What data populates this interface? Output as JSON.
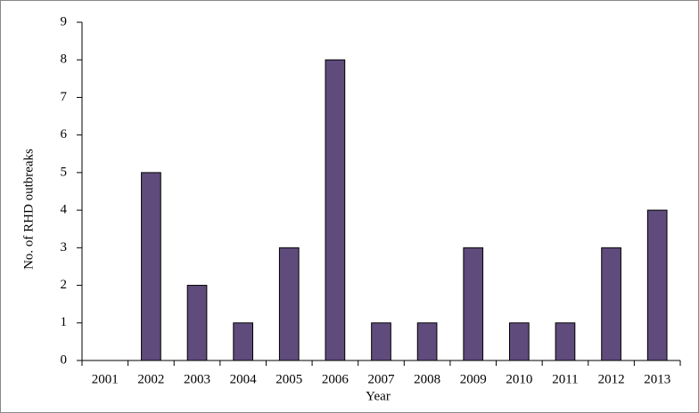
{
  "chart_data": {
    "type": "bar",
    "x_label": "Year",
    "y_label": "No. of RHD outbreaks",
    "categories": [
      "2001",
      "2002",
      "2003",
      "2004",
      "2005",
      "2006",
      "2007",
      "2008",
      "2009",
      "2010",
      "2011",
      "2012",
      "2013"
    ],
    "values": [
      0,
      5,
      2,
      1,
      3,
      8,
      1,
      1,
      3,
      1,
      1,
      3,
      4
    ],
    "color": "#5f4b7c",
    "ylim": [
      0,
      9
    ],
    "yticks": [
      0,
      1,
      2,
      3,
      4,
      5,
      6,
      7,
      8,
      9
    ],
    "grid": false
  }
}
